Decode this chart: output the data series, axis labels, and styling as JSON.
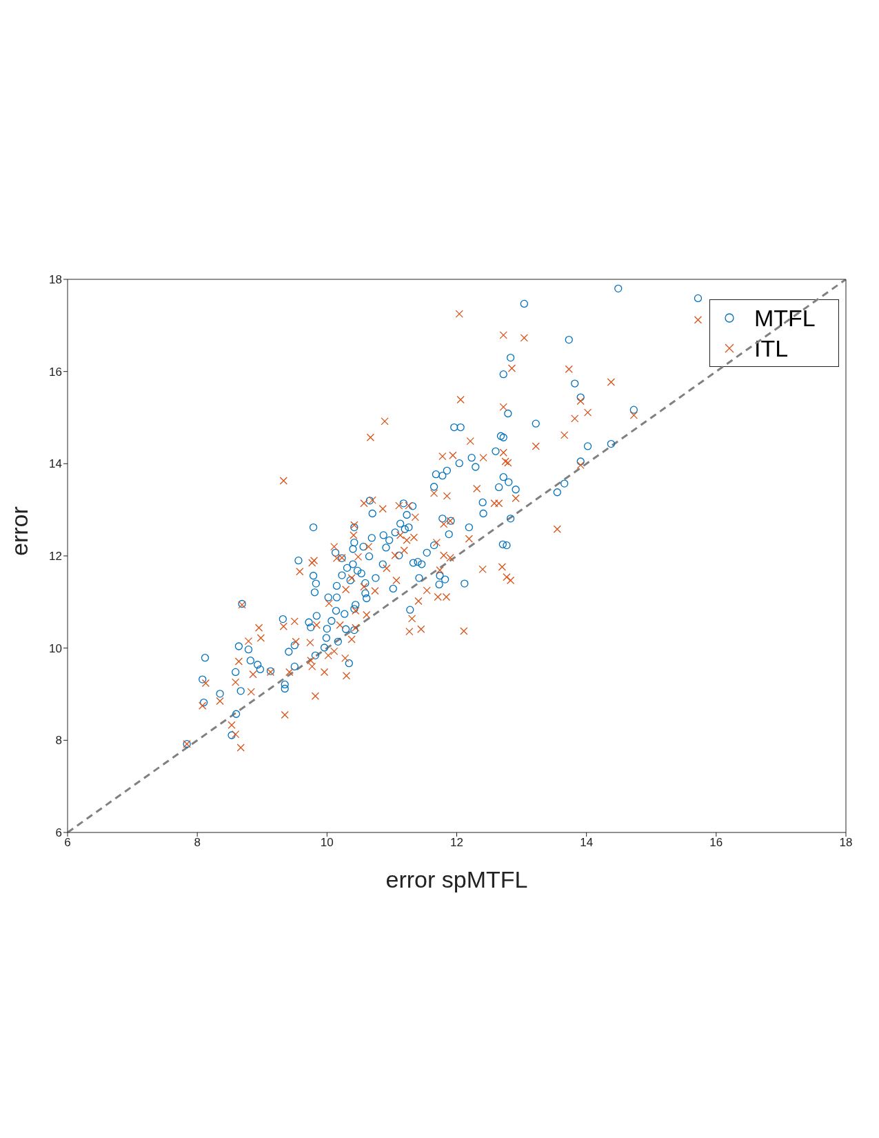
{
  "chart_data": {
    "type": "scatter",
    "xlabel": "error spMTFL",
    "ylabel": "error",
    "xlim": [
      6,
      18
    ],
    "xticks": [
      6,
      8,
      10,
      12,
      14,
      16,
      18
    ],
    "ylim": [
      6,
      18
    ],
    "yticks": [
      6,
      8,
      10,
      12,
      14,
      16,
      18
    ],
    "legend": "top right",
    "series": [
      {
        "name": "MTFL",
        "color": "#0072bd",
        "marker": "circle",
        "x": [
          7.84,
          8.08,
          8.12,
          8.1,
          8.35,
          8.53,
          8.6,
          8.59,
          8.64,
          8.67,
          8.69,
          8.79,
          8.82,
          8.93,
          8.97,
          9.13,
          9.32,
          9.35,
          9.35,
          9.41,
          9.5,
          9.5,
          9.56,
          9.72,
          9.75,
          9.79,
          9.79,
          9.81,
          9.83,
          9.82,
          9.84,
          9.96,
          10.02,
          10,
          9.99,
          10.07,
          10.13,
          10.15,
          10.15,
          10.17,
          10.14,
          10.23,
          10.23,
          10.27,
          10.29,
          10.31,
          10.34,
          10.36,
          10.4,
          10.4,
          10.42,
          10.42,
          10.44,
          10.42,
          10.42,
          10.47,
          10.53,
          10.56,
          10.59,
          10.59,
          10.61,
          10.65,
          10.66,
          10.69,
          10.7,
          10.75,
          10.87,
          10.86,
          10.91,
          10.96,
          11.02,
          11.05,
          11.11,
          11.13,
          11.18,
          11.2,
          11.23,
          11.26,
          11.28,
          11.32,
          11.33,
          11.4,
          11.42,
          11.46,
          11.54,
          11.65,
          11.65,
          11.68,
          11.73,
          11.74,
          11.78,
          11.78,
          11.82,
          11.85,
          11.88,
          11.91,
          11.96,
          12.04,
          12.06,
          12.12,
          12.19,
          12.23,
          12.29,
          12.4,
          12.41,
          12.6,
          12.65,
          12.68,
          12.72,
          12.72,
          12.71,
          12.72,
          12.77,
          12.79,
          12.8,
          12.83,
          12.83,
          12.91,
          13.04,
          13.22,
          13.55,
          13.66,
          13.73,
          13.82,
          13.91,
          13.91,
          14.02,
          14.38,
          14.49,
          14.73,
          15.72
        ],
        "values": [
          7.92,
          9.32,
          9.79,
          8.82,
          9.01,
          8.11,
          8.57,
          9.48,
          10.04,
          9.07,
          10.96,
          9.97,
          9.73,
          9.64,
          9.54,
          9.5,
          10.63,
          9.21,
          9.12,
          9.92,
          9.6,
          10.06,
          11.9,
          10.56,
          10.45,
          12.62,
          11.57,
          11.21,
          11.4,
          9.84,
          10.7,
          10.01,
          11.1,
          10.42,
          10.22,
          10.59,
          12.07,
          11.35,
          11.1,
          10.14,
          10.81,
          11.58,
          11.95,
          10.74,
          10.41,
          11.74,
          9.67,
          11.47,
          11.82,
          12.15,
          12.62,
          12.29,
          10.94,
          10.85,
          10.39,
          11.68,
          11.62,
          12.2,
          11.19,
          11.41,
          11.08,
          11.99,
          13.2,
          12.39,
          12.92,
          11.52,
          12.45,
          11.82,
          12.18,
          12.34,
          11.29,
          12.51,
          12.01,
          12.7,
          13.14,
          12.58,
          12.89,
          12.62,
          10.83,
          13.08,
          11.85,
          11.87,
          11.52,
          11.82,
          12.07,
          12.23,
          13.5,
          13.77,
          11.38,
          11.57,
          13.74,
          12.81,
          11.49,
          13.85,
          12.47,
          12.76,
          14.79,
          14.01,
          14.79,
          11.4,
          12.62,
          14.13,
          13.93,
          13.16,
          12.92,
          14.27,
          13.49,
          14.6,
          14.57,
          13.71,
          12.25,
          15.94,
          12.23,
          15.09,
          13.6,
          16.3,
          12.81,
          13.44,
          17.47,
          14.87,
          13.38,
          13.57,
          16.69,
          15.74,
          15.44,
          14.05,
          14.38,
          14.43,
          17.8,
          15.17,
          17.59
        ]
      },
      {
        "name": "ITL",
        "color": "#d95319",
        "marker": "cross",
        "x": [
          7.84,
          8.08,
          8.13,
          8.35,
          8.53,
          8.59,
          8.67,
          8.59,
          8.64,
          8.69,
          8.79,
          8.83,
          8.86,
          8.95,
          8.98,
          9.13,
          9.33,
          9.33,
          9.35,
          9.42,
          9.5,
          9.52,
          9.58,
          9.74,
          9.75,
          9.77,
          9.77,
          9.8,
          9.82,
          9.84,
          9.96,
          10.02,
          10.03,
          10.11,
          10.11,
          10.15,
          10.2,
          10.23,
          10.28,
          10.29,
          10.3,
          10.38,
          10.38,
          10.41,
          10.42,
          10.44,
          10.44,
          10.48,
          10.57,
          10.57,
          10.61,
          10.64,
          10.67,
          10.7,
          10.74,
          10.86,
          10.89,
          10.92,
          11.05,
          11.07,
          11.11,
          11.13,
          11.19,
          11.23,
          11.26,
          11.27,
          11.31,
          11.34,
          11.36,
          11.41,
          11.45,
          11.54,
          11.65,
          11.69,
          11.71,
          11.74,
          11.78,
          11.8,
          11.8,
          11.84,
          11.85,
          11.9,
          11.9,
          11.94,
          12.04,
          12.06,
          12.11,
          12.19,
          12.21,
          12.31,
          12.4,
          12.41,
          12.58,
          12.65,
          12.7,
          12.72,
          12.72,
          12.72,
          12.75,
          12.79,
          12.83,
          12.77,
          12.85,
          12.91,
          13.04,
          13.22,
          13.55,
          13.66,
          13.73,
          13.82,
          13.91,
          13.91,
          14.02,
          14.38,
          14.73,
          15.72
        ],
        "values": [
          7.92,
          8.75,
          9.24,
          8.85,
          8.33,
          8.13,
          7.84,
          9.26,
          9.71,
          10.94,
          10.15,
          9.05,
          9.43,
          10.44,
          10.22,
          9.48,
          13.63,
          10.47,
          8.55,
          9.48,
          10.58,
          10.14,
          11.66,
          10.12,
          9.73,
          9.6,
          11.85,
          11.9,
          8.96,
          10.5,
          9.48,
          9.84,
          10.97,
          9.93,
          12.2,
          11.95,
          10.5,
          11.96,
          9.78,
          11.27,
          9.4,
          10.19,
          11.52,
          12.45,
          12.67,
          10.44,
          10.81,
          11.98,
          13.14,
          11.33,
          10.72,
          12.2,
          14.57,
          13.21,
          11.24,
          13.02,
          14.92,
          11.73,
          12.01,
          11.47,
          13.09,
          12.45,
          12.12,
          12.34,
          13.09,
          10.36,
          10.64,
          12.4,
          12.84,
          11.02,
          10.41,
          11.25,
          13.36,
          12.29,
          11.11,
          11.69,
          14.16,
          12.01,
          12.69,
          11.11,
          13.3,
          11.96,
          12.76,
          14.18,
          17.25,
          15.39,
          10.37,
          12.37,
          14.49,
          13.46,
          11.71,
          14.13,
          13.14,
          13.14,
          11.76,
          16.79,
          15.23,
          14.24,
          14.05,
          14.02,
          11.47,
          11.54,
          16.07,
          13.25,
          16.73,
          14.38,
          12.58,
          14.62,
          16.05,
          14.98,
          15.36,
          13.97,
          15.11,
          15.77,
          15.05,
          17.12
        ]
      },
      {
        "type": "line",
        "color": "#808080",
        "line_style": "dashed",
        "marker": "none",
        "x": [
          6,
          18
        ],
        "values": [
          6,
          18
        ]
      }
    ]
  }
}
